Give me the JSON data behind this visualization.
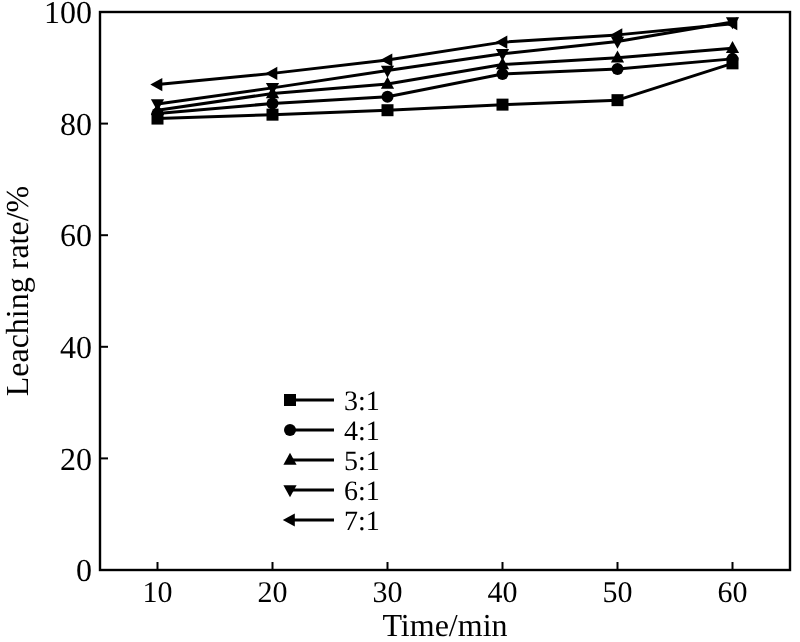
{
  "chart_data": {
    "type": "line",
    "xlabel": "Time/min",
    "ylabel": "Leaching rate/%",
    "x": [
      10,
      20,
      30,
      40,
      50,
      60
    ],
    "xlim": [
      5,
      65
    ],
    "xticks": [
      10,
      20,
      30,
      40,
      50,
      60
    ],
    "ylim": [
      0,
      100
    ],
    "yticks": [
      0,
      20,
      40,
      60,
      80,
      100
    ],
    "grid": false,
    "legend": "bottom left",
    "series": [
      {
        "name": "3:1",
        "color": "#000000",
        "marker": "square",
        "values": [
          80.9,
          81.6,
          82.4,
          83.4,
          84.2,
          90.8
        ]
      },
      {
        "name": "4:1",
        "color": "#000000",
        "marker": "circle",
        "values": [
          81.8,
          83.6,
          84.8,
          88.9,
          89.8,
          91.6
        ]
      },
      {
        "name": "5:1",
        "color": "#000000",
        "marker": "triangle",
        "values": [
          82.4,
          85.4,
          87.1,
          90.6,
          91.8,
          93.5
        ]
      },
      {
        "name": "6:1",
        "color": "#000000",
        "marker": "triangle-down",
        "values": [
          83.5,
          86.4,
          89.5,
          92.5,
          94.7,
          98.2
        ]
      },
      {
        "name": "7:1",
        "color": "#000000",
        "marker": "triangle-left",
        "values": [
          87.0,
          89.0,
          91.4,
          94.6,
          95.9,
          97.9
        ]
      }
    ]
  }
}
